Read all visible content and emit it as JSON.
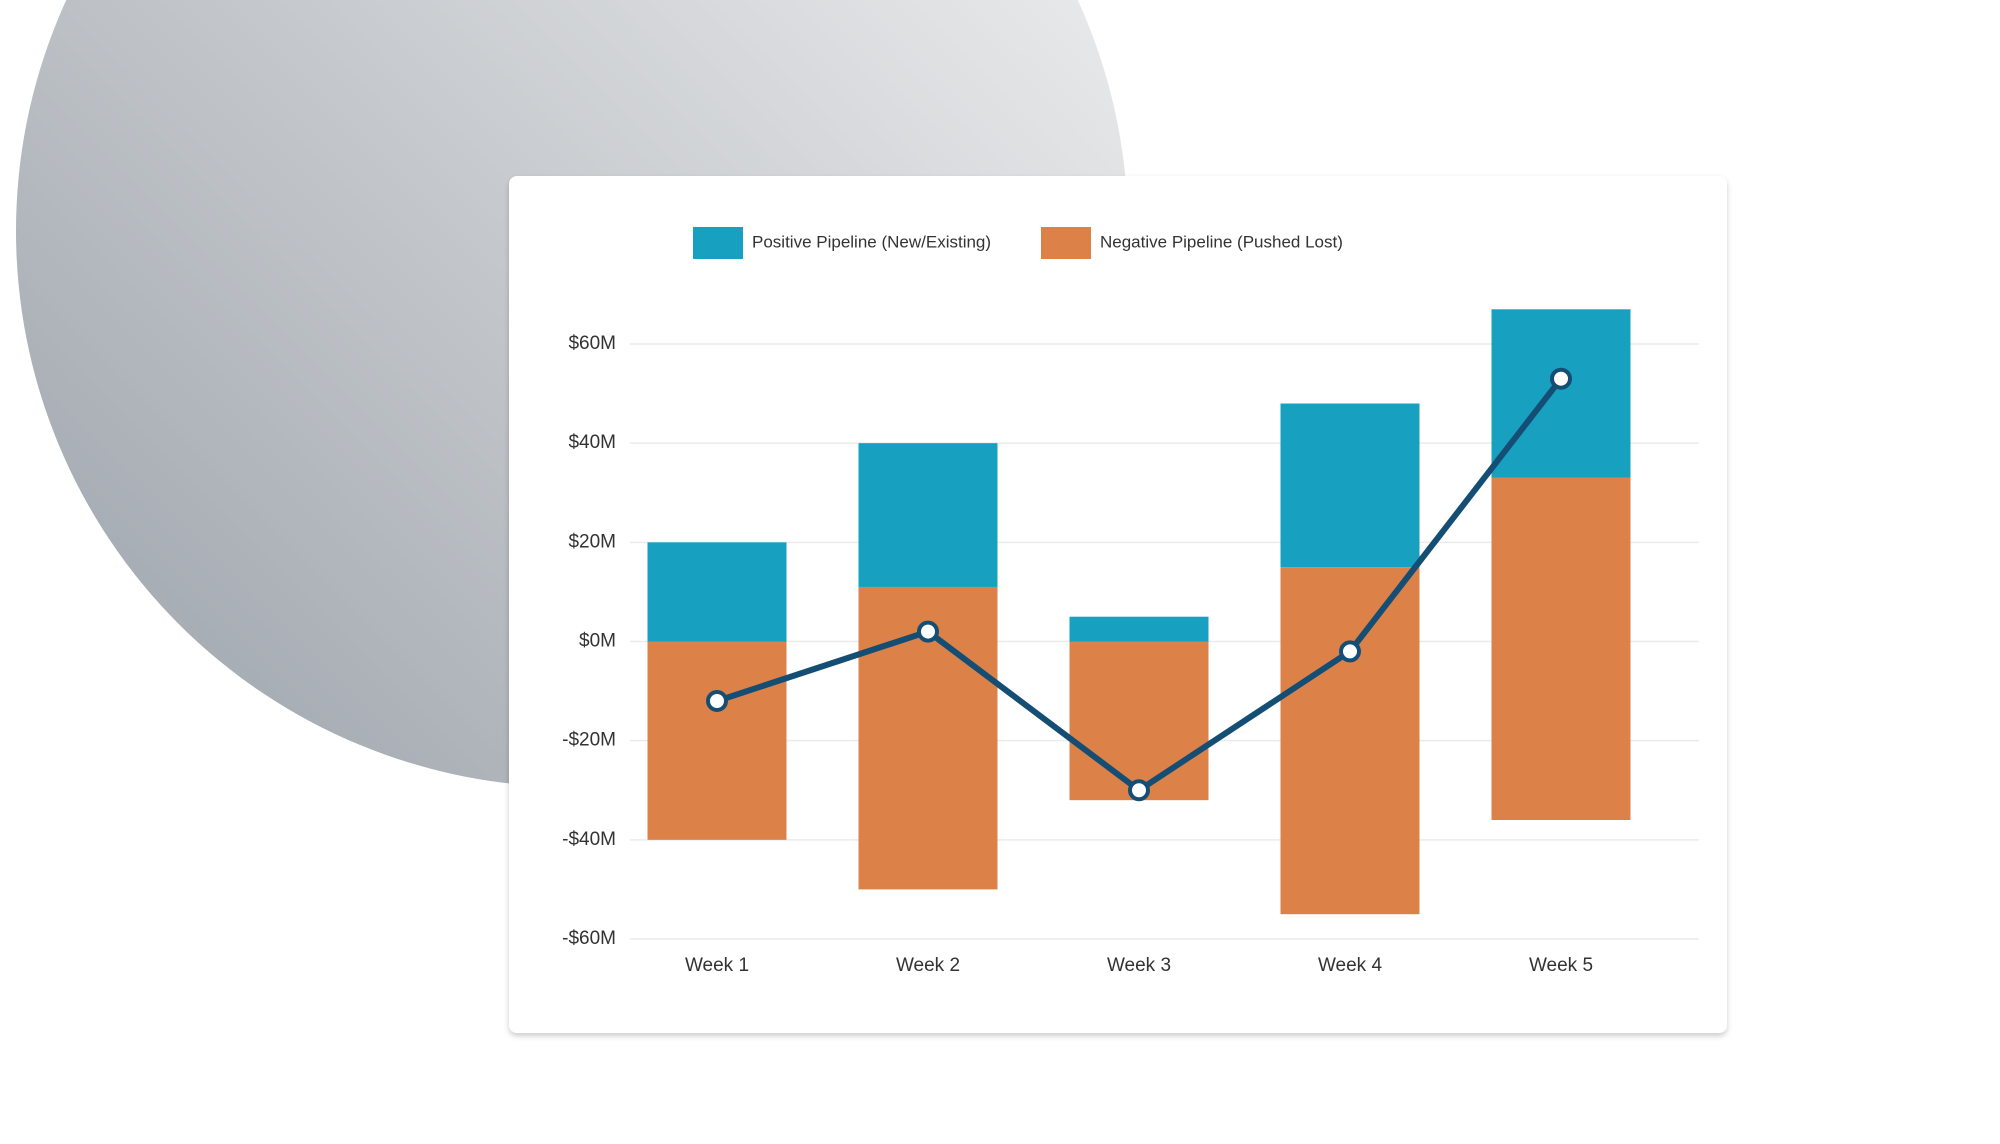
{
  "chart_data": {
    "type": "floating-bar-line",
    "categories": [
      "Week 1",
      "Week 2",
      "Week 3",
      "Week 4",
      "Week 5"
    ],
    "series": [
      {
        "name": "Positive Pipeline (New/Existing)",
        "color": "#17a0bf",
        "start": [
          0,
          11,
          0,
          15,
          33
        ],
        "end": [
          20,
          40,
          5,
          48,
          67
        ]
      },
      {
        "name": "Negative Pipeline (Pushed Lost)",
        "color": "#dc8148",
        "start": [
          -40,
          -50,
          -32,
          -55,
          -36
        ],
        "end": [
          0,
          11,
          0,
          15,
          33
        ]
      },
      {
        "type": "line",
        "color": "#154e74",
        "values": [
          -12,
          2,
          -30,
          -2,
          53
        ]
      }
    ],
    "ylim": [
      -60,
      60
    ],
    "yticks": [
      {
        "value": -60,
        "label": "-$60M"
      },
      {
        "value": -40,
        "label": "-$40M"
      },
      {
        "value": -20,
        "label": "-$20M"
      },
      {
        "value": 0,
        "label": "$0M"
      },
      {
        "value": 20,
        "label": "$20M"
      },
      {
        "value": 40,
        "label": "$40M"
      },
      {
        "value": 60,
        "label": "$60M"
      }
    ],
    "grid": true,
    "legend": "top"
  }
}
